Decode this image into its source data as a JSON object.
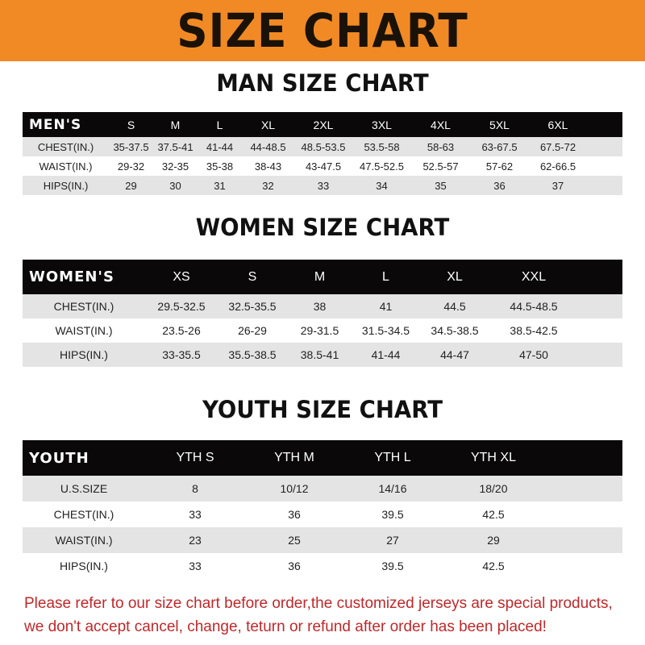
{
  "banner_title": "SIZE CHART",
  "men": {
    "title": "MAN SIZE CHART",
    "header": [
      "MEN'S",
      "S",
      "M",
      "L",
      "XL",
      "2XL",
      "3XL",
      "4XL",
      "5XL",
      "6XL"
    ],
    "rows": [
      [
        "CHEST(IN.)",
        "35-37.5",
        "37.5-41",
        "41-44",
        "44-48.5",
        "48.5-53.5",
        "53.5-58",
        "58-63",
        "63-67.5",
        "67.5-72"
      ],
      [
        "WAIST(IN.)",
        "29-32",
        "32-35",
        "35-38",
        "38-43",
        "43-47.5",
        "47.5-52.5",
        "52.5-57",
        "57-62",
        "62-66.5"
      ],
      [
        "HIPS(IN.)",
        "29",
        "30",
        "31",
        "32",
        "33",
        "34",
        "35",
        "36",
        "37"
      ]
    ]
  },
  "women": {
    "title": "WOMEN SIZE CHART",
    "header": [
      "WOMEN'S",
      "XS",
      "S",
      "M",
      "L",
      "XL",
      "XXL"
    ],
    "rows": [
      [
        "CHEST(IN.)",
        "29.5-32.5",
        "32.5-35.5",
        "38",
        "41",
        "44.5",
        "44.5-48.5"
      ],
      [
        "WAIST(IN.)",
        "23.5-26",
        "26-29",
        "29-31.5",
        "31.5-34.5",
        "34.5-38.5",
        "38.5-42.5"
      ],
      [
        "HIPS(IN.)",
        "33-35.5",
        "35.5-38.5",
        "38.5-41",
        "41-44",
        "44-47",
        "47-50"
      ]
    ]
  },
  "youth": {
    "title": "YOUTH SIZE CHART",
    "header": [
      "YOUTH",
      "YTH S",
      "YTH M",
      "YTH L",
      "YTH XL"
    ],
    "rows": [
      [
        "U.S.SIZE",
        "8",
        "10/12",
        "14/16",
        "18/20"
      ],
      [
        "CHEST(IN.)",
        "33",
        "36",
        "39.5",
        "42.5"
      ],
      [
        "WAIST(IN.)",
        "23",
        "25",
        "27",
        "29"
      ],
      [
        "HIPS(IN.)",
        "33",
        "36",
        "39.5",
        "42.5"
      ]
    ]
  },
  "notice": [
    "Please refer to our size chart before order,the customized jerseys are special products,",
    "we don't accept cancel, change, teturn or refund after order has been placed!"
  ],
  "colors": {
    "banner": "#f18a25",
    "header_row": "#0a0808",
    "stripe": "#e4e4e4",
    "notice": "#c0282a"
  }
}
